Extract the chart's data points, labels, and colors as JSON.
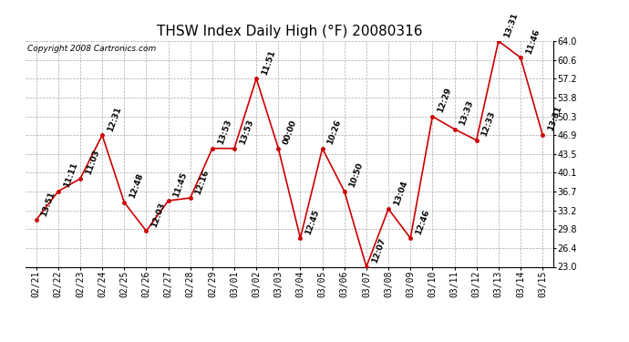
{
  "title": "THSW Index Daily High (°F) 20080316",
  "copyright": "Copyright 2008 Cartronics.com",
  "dates": [
    "02/21",
    "02/22",
    "02/23",
    "02/24",
    "02/25",
    "02/26",
    "02/27",
    "02/28",
    "02/29",
    "03/01",
    "03/02",
    "03/03",
    "03/04",
    "03/05",
    "03/06",
    "03/07",
    "03/08",
    "03/09",
    "03/10",
    "03/11",
    "03/12",
    "03/13",
    "03/14",
    "03/15"
  ],
  "values": [
    31.5,
    36.7,
    39.0,
    46.9,
    34.7,
    29.5,
    35.0,
    35.5,
    44.5,
    44.5,
    57.2,
    44.5,
    28.2,
    44.5,
    36.7,
    23.0,
    33.5,
    28.2,
    50.3,
    48.0,
    46.0,
    64.0,
    61.0,
    47.0
  ],
  "labels": [
    "13:51",
    "11:11",
    "11:03",
    "12:31",
    "12:48",
    "12:03",
    "11:45",
    "12:16",
    "13:53",
    "13:53",
    "11:51",
    "00:00",
    "12:45",
    "10:26",
    "10:50",
    "12:07",
    "13:04",
    "12:46",
    "12:29",
    "13:33",
    "12:33",
    "13:31",
    "11:46",
    "13:31"
  ],
  "ylim": [
    23.0,
    64.0
  ],
  "yticks": [
    23.0,
    26.4,
    29.8,
    33.2,
    36.7,
    40.1,
    43.5,
    46.9,
    50.3,
    53.8,
    57.2,
    60.6,
    64.0
  ],
  "line_color": "#cc0000",
  "marker_color": "#cc0000",
  "marker_size": 3.5,
  "bg_color": "#ffffff",
  "grid_color": "#aaaaaa",
  "title_fontsize": 11,
  "label_fontsize": 6.5,
  "tick_fontsize": 7,
  "copyright_fontsize": 6.5
}
